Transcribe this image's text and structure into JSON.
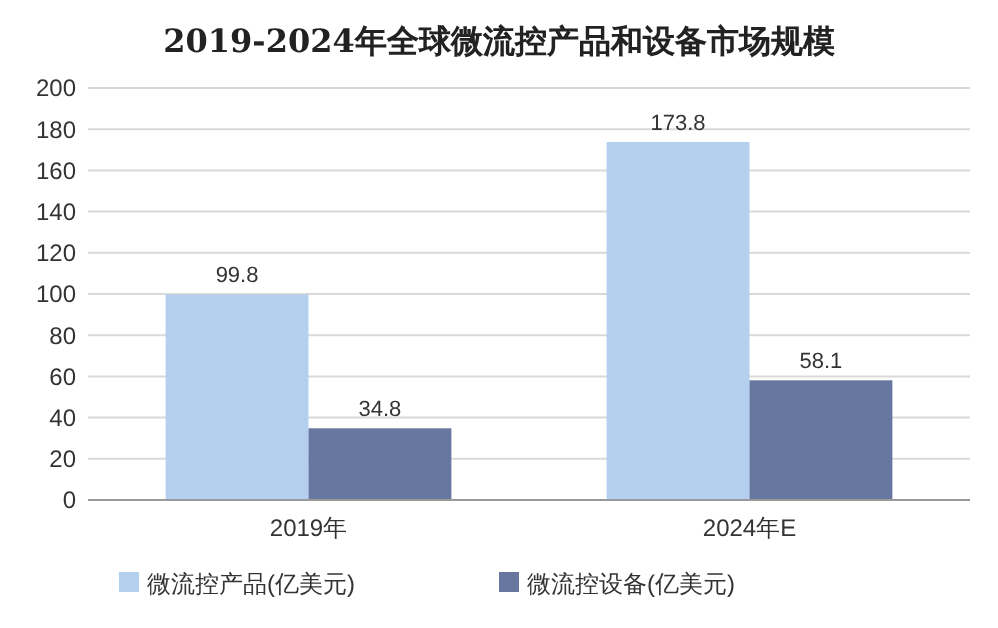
{
  "chart_data": {
    "type": "bar",
    "title": "2019-2024年全球微流控产品和设备市场规模",
    "categories": [
      "2019年",
      "2024年E"
    ],
    "series": [
      {
        "name": "微流控产品(亿美元)",
        "color": "#b4d0ee",
        "values": [
          99.8,
          173.8
        ]
      },
      {
        "name": "微流控设备(亿美元)",
        "color": "#68779f",
        "values": [
          34.8,
          58.1
        ]
      }
    ],
    "ylim": [
      0,
      200
    ],
    "yticks": [
      0,
      20,
      40,
      60,
      80,
      100,
      120,
      140,
      160,
      180,
      200
    ],
    "grid": "y",
    "legend": "bottom",
    "data_labels": true
  }
}
